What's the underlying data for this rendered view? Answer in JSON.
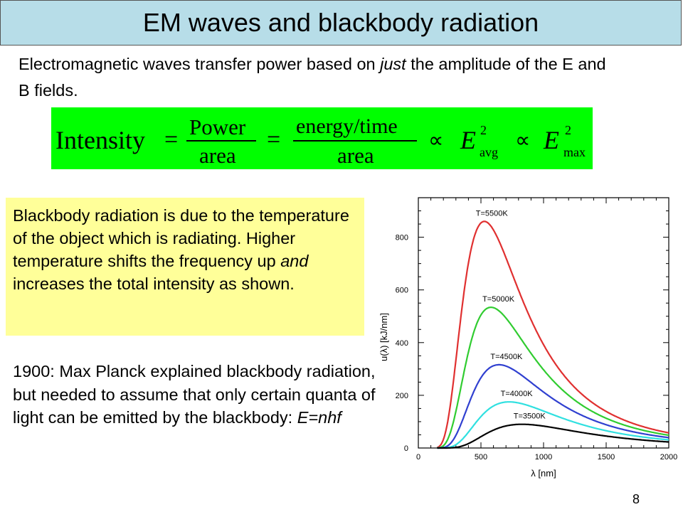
{
  "slide": {
    "title": "EM waves and blackbody radiation",
    "page_number": "8"
  },
  "intro": {
    "part1": "Electromagnetic waves transfer power based on ",
    "emphasis": "just",
    "part2": " the amplitude of the E and B fields."
  },
  "equation": {
    "lhs": "Intensity",
    "eq": "=",
    "frac1_num": "Power",
    "frac1_den": "area",
    "frac2_num": "energy/time",
    "frac2_den": "area",
    "prop": "∝",
    "e_symbol": "E",
    "exp": "2",
    "sub_avg": "avg",
    "sub_max": "max"
  },
  "note": {
    "part1": "Blackbody radiation is due to the temperature of the object which is radiating. Higher temperature shifts the frequency up ",
    "emphasis": "and",
    "part2": " increases the total intensity as shown."
  },
  "planck": {
    "part1": "1900: Max Planck explained blackbody radiation, but needed to assume that only certain quanta of light can be emitted by the blackbody: ",
    "formula": "E=nhf"
  },
  "colors": {
    "title_bg": "#b7dde8",
    "equation_bg": "#00ff00",
    "note_bg": "#ffff99"
  },
  "chart_data": {
    "type": "line",
    "title": "",
    "xlabel": "λ [nm]",
    "ylabel": "u(λ) [kJ/nm]",
    "xlim": [
      0,
      2000
    ],
    "ylim": [
      0,
      950
    ],
    "xticks": [
      0,
      500,
      1000,
      1500,
      2000
    ],
    "yticks": [
      0,
      200,
      400,
      600,
      800
    ],
    "grid": false,
    "series": [
      {
        "name": "T=5500K",
        "color": "#e03030",
        "temperature": 5500,
        "peak_x": 527,
        "peak_y": 860
      },
      {
        "name": "T=5000K",
        "color": "#30cc30",
        "temperature": 5000,
        "peak_x": 580,
        "peak_y": 534
      },
      {
        "name": "T=4500K",
        "color": "#3040d0",
        "temperature": 4500,
        "peak_x": 644,
        "peak_y": 316
      },
      {
        "name": "T=4000K",
        "color": "#30e0e0",
        "temperature": 4000,
        "peak_x": 725,
        "peak_y": 175
      },
      {
        "name": "T=3500K",
        "color": "#000000",
        "temperature": 3500,
        "peak_x": 828,
        "peak_y": 90
      }
    ]
  }
}
